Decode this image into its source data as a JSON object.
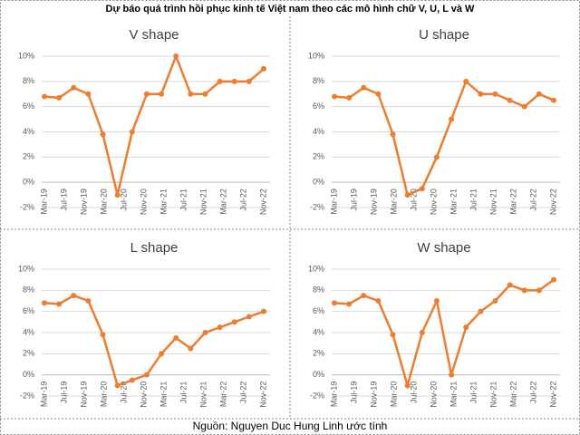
{
  "title": "Dự báo quá trình hồi phục kinh tế Việt nam theo các mô hình chữ V, U, L và W",
  "source": "Nguồn: Nguyen Duc Hung Linh ước tính",
  "chart_data": [
    {
      "type": "line",
      "title": "V shape",
      "color": "#ED7D31",
      "grid": true,
      "xticks": [
        "Mar-19",
        "Jul-19",
        "Nov-19",
        "Mar-20",
        "Jul-20",
        "Nov-20",
        "Mar-21",
        "Jul-21",
        "Nov-21",
        "Mar-22",
        "Jul-22",
        "Nov-22"
      ],
      "values": [
        6.8,
        6.7,
        7.5,
        7.0,
        3.8,
        -1,
        4,
        7,
        7,
        10,
        7,
        7,
        8,
        8,
        8,
        9
      ],
      "ylim": [
        -2,
        10
      ],
      "yticks": [
        {
          "value": -2,
          "label": "-2%"
        },
        {
          "value": 0,
          "label": "0%"
        },
        {
          "value": 2,
          "label": "2%"
        },
        {
          "value": 4,
          "label": "4%"
        },
        {
          "value": 6,
          "label": "6%"
        },
        {
          "value": 8,
          "label": "8%"
        },
        {
          "value": 10,
          "label": "10%"
        }
      ]
    },
    {
      "type": "line",
      "title": "U shape",
      "color": "#ED7D31",
      "grid": true,
      "xticks": [
        "Mar-19",
        "Jul-19",
        "Nov-19",
        "Mar-20",
        "Jul-20",
        "Nov-20",
        "Mar-21",
        "Jul-21",
        "Nov-21",
        "Mar-22",
        "Jul-22",
        "Nov-22"
      ],
      "values": [
        6.8,
        6.7,
        7.5,
        7.0,
        3.8,
        -1,
        -0.5,
        2,
        5,
        8,
        7,
        7,
        6.5,
        6,
        7,
        6.5
      ],
      "ylim": [
        -2,
        10
      ],
      "yticks": [
        {
          "value": -2,
          "label": "-2%"
        },
        {
          "value": 0,
          "label": "0%"
        },
        {
          "value": 2,
          "label": "2%"
        },
        {
          "value": 4,
          "label": "4%"
        },
        {
          "value": 6,
          "label": "6%"
        },
        {
          "value": 8,
          "label": "8%"
        },
        {
          "value": 10,
          "label": "10%"
        }
      ]
    },
    {
      "type": "line",
      "title": "L shape",
      "color": "#ED7D31",
      "grid": true,
      "xticks": [
        "Mar-19",
        "Jul-19",
        "Nov-19",
        "Mar-20",
        "Jul-20",
        "Nov-20",
        "Mar-21",
        "Jul-21",
        "Nov-21",
        "Mar-22",
        "Jul-22",
        "Nov-22"
      ],
      "values": [
        6.8,
        6.7,
        7.5,
        7.0,
        3.8,
        -1,
        -0.5,
        0,
        2,
        3.5,
        2.5,
        4,
        4.5,
        5,
        5.5,
        6
      ],
      "ylim": [
        -2,
        10
      ],
      "yticks": [
        {
          "value": -2,
          "label": "-2%"
        },
        {
          "value": 0,
          "label": "0%"
        },
        {
          "value": 2,
          "label": "2%"
        },
        {
          "value": 4,
          "label": "4%"
        },
        {
          "value": 6,
          "label": "6%"
        },
        {
          "value": 8,
          "label": "8%"
        },
        {
          "value": 10,
          "label": "10%"
        }
      ]
    },
    {
      "type": "line",
      "title": "W shape",
      "color": "#ED7D31",
      "grid": true,
      "xticks": [
        "Mar-19",
        "Jul-19",
        "Nov-19",
        "Mar-20",
        "Jul-20",
        "Nov-20",
        "Mar-21",
        "Jul-21",
        "Nov-21",
        "Mar-22",
        "Jul-22",
        "Nov-22"
      ],
      "values": [
        6.8,
        6.7,
        7.5,
        7.0,
        3.8,
        -1,
        4,
        7,
        0,
        4.5,
        6,
        7,
        8.5,
        8,
        8,
        9
      ],
      "ylim": [
        -2,
        10
      ],
      "yticks": [
        {
          "value": -2,
          "label": "-2%"
        },
        {
          "value": 0,
          "label": "0%"
        },
        {
          "value": 2,
          "label": "2%"
        },
        {
          "value": 4,
          "label": "4%"
        },
        {
          "value": 6,
          "label": "6%"
        },
        {
          "value": 8,
          "label": "8%"
        },
        {
          "value": 10,
          "label": "10%"
        }
      ]
    }
  ]
}
